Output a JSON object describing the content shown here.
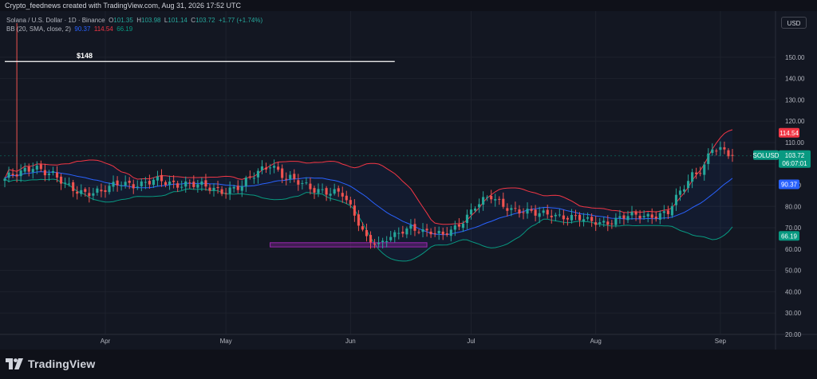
{
  "header": {
    "text": "Crypto_feednews created with TradingView.com, Aug 31, 2026 17:52 UTC"
  },
  "legend": {
    "line1": {
      "name": "Solana / U.S. Dollar · 1D · Binance",
      "o_label": "O",
      "o": "101.35",
      "h_label": "H",
      "h": "103.98",
      "l_label": "L",
      "l": "101.14",
      "c_label": "C",
      "c": "103.72",
      "change": "+1.77 (+1.74%)"
    },
    "line2": {
      "name": "BB (20, SMA, close, 2)",
      "basis": "90.37",
      "upper": "114.54",
      "lower": "66.19"
    }
  },
  "currency_button": "USD",
  "annotation": {
    "level_label": "$148",
    "level_value": 148
  },
  "price_tags": {
    "upper": {
      "text": "114.54",
      "color": "#f23645"
    },
    "symbol": {
      "label": "SOLUSD",
      "price": "103.72",
      "countdown": "06:07:01",
      "color": "#089981"
    },
    "basis": {
      "text": "90.37",
      "color": "#2962ff"
    },
    "lower": {
      "text": "66.19",
      "color": "#089981"
    }
  },
  "brand": {
    "name": "TradingView"
  },
  "chart_data": {
    "type": "candlestick",
    "symbol": "SOLUSD",
    "interval": "1D",
    "ylim": [
      14,
      166
    ],
    "y_ticks": [
      20,
      30,
      40,
      50,
      60,
      70,
      80,
      90,
      100,
      110,
      120,
      130,
      140,
      150
    ],
    "y_tick_labels": [
      "20.00",
      "30.00",
      "40.00",
      "50.00",
      "60.00",
      "70.00",
      "80.00",
      "90.00",
      "100.00",
      "110.00",
      "120.00",
      "130.00",
      "140.00",
      "150.00"
    ],
    "x_labels": [
      {
        "label": "Apr",
        "index": 25
      },
      {
        "label": "May",
        "index": 55
      },
      {
        "label": "Jun",
        "index": 86
      },
      {
        "label": "Jul",
        "index": 116
      },
      {
        "label": "Aug",
        "index": 147
      },
      {
        "label": "Sep",
        "index": 178
      }
    ],
    "bars": 182,
    "last_index": 181,
    "key_closes": [
      [
        0,
        92
      ],
      [
        4,
        96
      ],
      [
        7,
        100
      ],
      [
        11,
        95
      ],
      [
        15,
        90
      ],
      [
        20,
        87
      ],
      [
        24,
        86
      ],
      [
        29,
        92
      ],
      [
        34,
        90
      ],
      [
        39,
        92
      ],
      [
        44,
        91
      ],
      [
        49,
        89
      ],
      [
        54,
        88
      ],
      [
        59,
        89
      ],
      [
        63,
        96
      ],
      [
        66,
        101
      ],
      [
        70,
        93
      ],
      [
        74,
        90
      ],
      [
        79,
        88
      ],
      [
        84,
        85
      ],
      [
        87,
        76
      ],
      [
        90,
        66
      ],
      [
        93,
        62
      ],
      [
        97,
        66
      ],
      [
        101,
        71
      ],
      [
        105,
        68
      ],
      [
        109,
        66
      ],
      [
        113,
        72
      ],
      [
        117,
        80
      ],
      [
        121,
        84
      ],
      [
        124,
        81
      ],
      [
        128,
        78
      ],
      [
        132,
        76
      ],
      [
        136,
        77
      ],
      [
        140,
        75
      ],
      [
        145,
        73
      ],
      [
        150,
        73
      ],
      [
        155,
        75
      ],
      [
        160,
        76
      ],
      [
        165,
        77
      ],
      [
        168,
        86
      ],
      [
        171,
        95
      ],
      [
        174,
        100
      ],
      [
        176,
        108
      ],
      [
        178,
        105
      ],
      [
        181,
        103.72
      ]
    ],
    "resistance_line": {
      "value": 148,
      "from_index": 0,
      "to_index": 97,
      "label": "$148"
    },
    "support_zone": {
      "low": 61,
      "high": 63,
      "from_index": 66,
      "to_index": 105,
      "color": "#9c27b0"
    },
    "bollinger": {
      "period": 20,
      "std": 2,
      "basis": 90.37,
      "upper": 114.54,
      "lower": 66.19
    },
    "colors": {
      "up": "#26a69a",
      "down": "#ef5350",
      "basis": "#2962ff",
      "upper": "#f23645",
      "lower": "#089981",
      "grid": "#1e222d"
    }
  }
}
